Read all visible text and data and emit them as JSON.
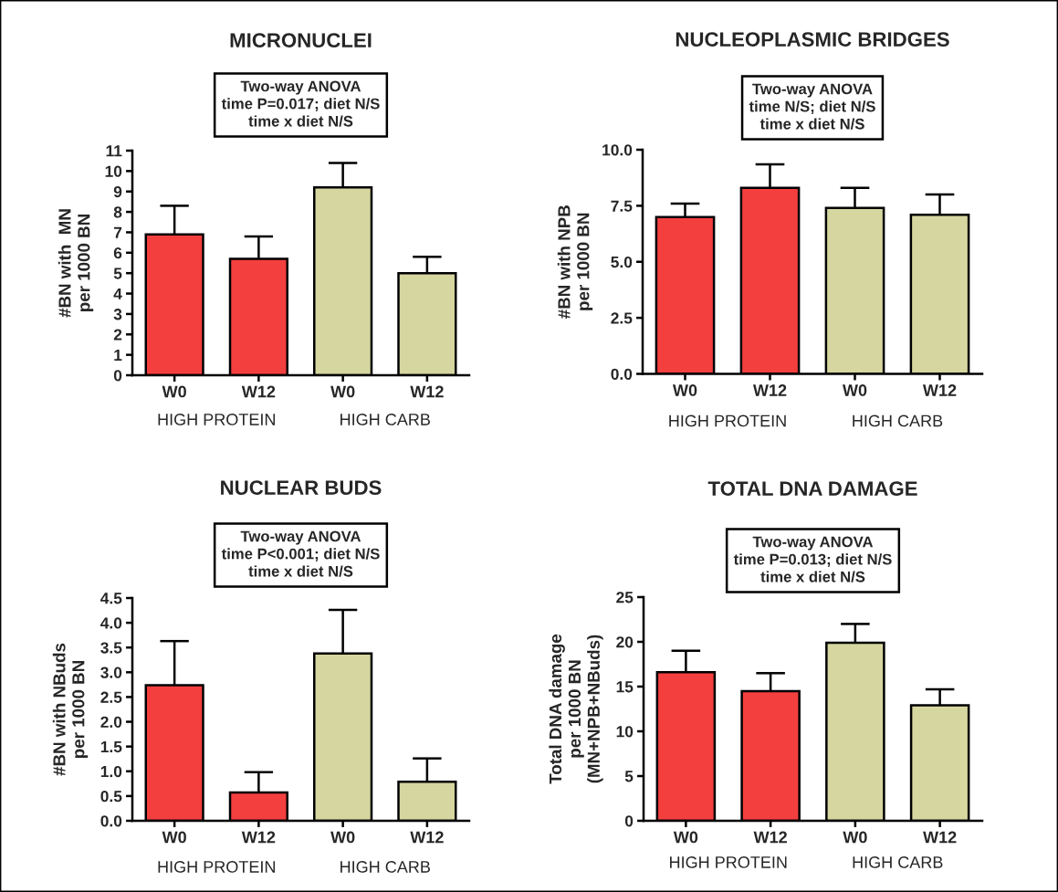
{
  "chart_data": [
    {
      "type": "bar",
      "title": "MICRONUCLEI",
      "ylabel": "#BN with  MN\nper 1000 BN",
      "annotations": [
        "Two-way ANOVA\ntime P=0.017; diet N/S\ntime x diet N/S"
      ],
      "categories": [
        "W0",
        "W12",
        "W0",
        "W12"
      ],
      "series": [
        {
          "name": "HIGH PROTEIN",
          "color": "#f43f3f",
          "values": [
            6.9,
            5.7,
            null,
            null
          ],
          "errors": [
            [
              6.9,
              8.3
            ],
            [
              5.7,
              6.8
            ],
            null,
            null
          ]
        },
        {
          "name": "HIGH CARB",
          "color": "#d6d6a0",
          "values": [
            null,
            null,
            9.2,
            5.0
          ],
          "errors": [
            null,
            null,
            [
              9.2,
              10.4
            ],
            [
              5.0,
              5.8
            ]
          ]
        }
      ],
      "ylim": [
        0,
        11
      ],
      "yticks": [
        0,
        1,
        2,
        3,
        4,
        5,
        6,
        7,
        8,
        9,
        10,
        11
      ]
    },
    {
      "type": "bar",
      "title": "NUCLEOPLASMIC BRIDGES",
      "ylabel": "#BN with NPB\nper 1000 BN",
      "annotations": [
        "Two-way ANOVA\ntime N/S; diet N/S\ntime x diet N/S"
      ],
      "categories": [
        "W0",
        "W12",
        "W0",
        "W12"
      ],
      "series": [
        {
          "name": "HIGH PROTEIN",
          "color": "#f43f3f",
          "values": [
            7.0,
            8.3,
            null,
            null
          ],
          "errors": [
            [
              7.0,
              7.6
            ],
            [
              8.3,
              9.35
            ],
            null,
            null
          ]
        },
        {
          "name": "HIGH CARB",
          "color": "#d6d6a0",
          "values": [
            null,
            null,
            7.4,
            7.1
          ],
          "errors": [
            null,
            null,
            [
              7.4,
              8.3
            ],
            [
              7.1,
              8.0
            ]
          ]
        }
      ],
      "ylim": [
        0,
        10
      ],
      "yticks": [
        {
          "value": 0,
          "label": "0.0"
        },
        2.5,
        {
          "value": 5,
          "label": "5.0"
        },
        7.5,
        {
          "value": 10,
          "label": "10.0"
        }
      ]
    },
    {
      "type": "bar",
      "title": "NUCLEAR BUDS",
      "ylabel": "#BN with NBuds\nper 1000 BN",
      "annotations": [
        "Two-way ANOVA\ntime P<0.001; diet N/S\ntime x diet N/S"
      ],
      "categories": [
        "W0",
        "W12",
        "W0",
        "W12"
      ],
      "series": [
        {
          "name": "HIGH PROTEIN",
          "color": "#f43f3f",
          "values": [
            2.74,
            0.57,
            null,
            null
          ],
          "errors": [
            [
              2.74,
              3.63
            ],
            [
              0.57,
              0.98
            ],
            null,
            null
          ]
        },
        {
          "name": "HIGH CARB",
          "color": "#d6d6a0",
          "values": [
            null,
            null,
            3.38,
            0.79
          ],
          "errors": [
            null,
            null,
            [
              3.38,
              4.26
            ],
            [
              0.79,
              1.26
            ]
          ]
        }
      ],
      "ylim": [
        0,
        4.5
      ],
      "yticks": [
        {
          "value": 0,
          "label": "0.0"
        },
        0.5,
        {
          "value": 1,
          "label": "1.0"
        },
        1.5,
        {
          "value": 2,
          "label": "2.0"
        },
        2.5,
        {
          "value": 3,
          "label": "3.0"
        },
        3.5,
        {
          "value": 4,
          "label": "4.0"
        },
        4.5
      ]
    },
    {
      "type": "bar",
      "title": "TOTAL DNA DAMAGE",
      "ylabel": "Total DNA damage\nper 1000 BN\n(MN+NPB+NBuds)",
      "annotations": [
        "Two-way ANOVA\ntime P=0.013; diet N/S\ntime x diet N/S"
      ],
      "categories": [
        "W0",
        "W12",
        "W0",
        "W12"
      ],
      "series": [
        {
          "name": "HIGH PROTEIN",
          "color": "#f43f3f",
          "values": [
            16.6,
            14.5,
            null,
            null
          ],
          "errors": [
            [
              16.6,
              19.0
            ],
            [
              14.5,
              16.5
            ],
            null,
            null
          ]
        },
        {
          "name": "HIGH CARB",
          "color": "#d6d6a0",
          "values": [
            null,
            null,
            19.9,
            12.9
          ],
          "errors": [
            null,
            null,
            [
              19.9,
              22.0
            ],
            [
              12.9,
              14.7
            ]
          ]
        }
      ],
      "ylim": [
        0,
        25
      ],
      "yticks": [
        0,
        5,
        10,
        15,
        20,
        25
      ]
    }
  ]
}
